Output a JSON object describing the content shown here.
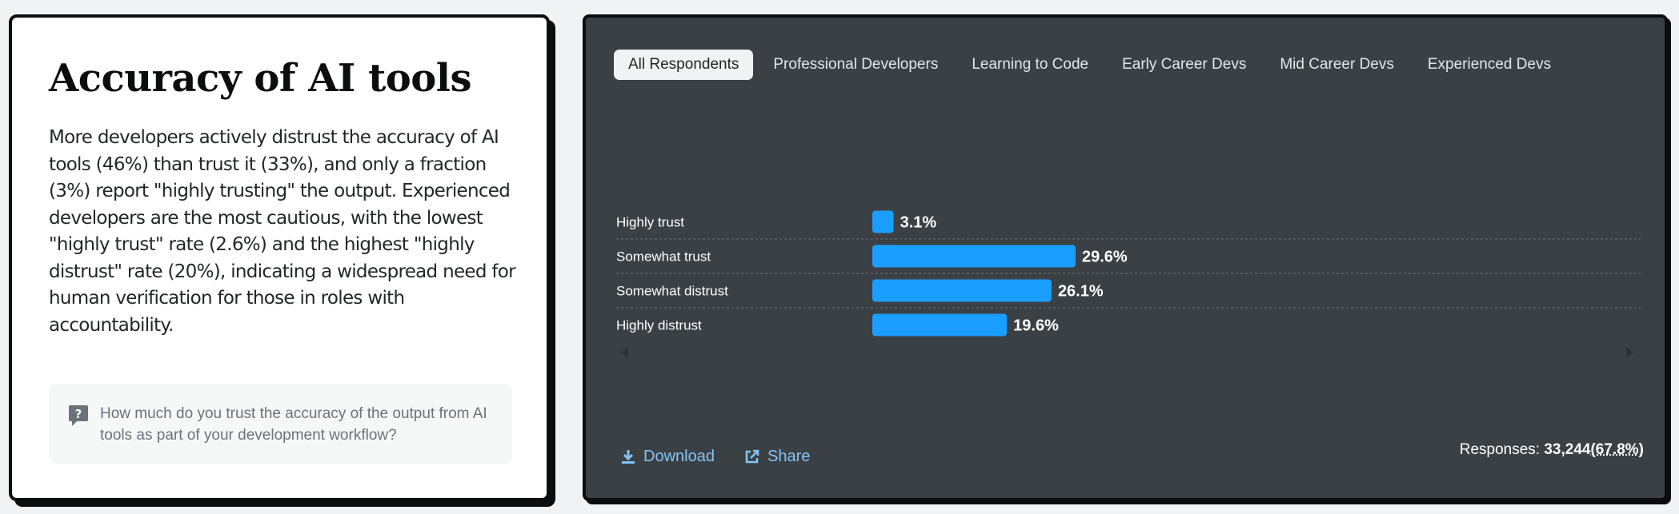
{
  "left": {
    "title": "Accuracy of AI tools",
    "description": "More developers actively distrust the accuracy of AI tools (46%) than trust it (33%), and only a fraction (3%) report \"highly trusting\" the output. Experienced developers are the most cautious, with the lowest \"highly trust\" rate (2.6%) and the highest \"highly distrust\" rate (20%), indicating a widespread need for human verification for those in roles with accountability.",
    "question": "How much do you trust the accuracy of the output from AI tools as part of your development workflow?",
    "question_icon": "question-icon"
  },
  "tabs": [
    {
      "label": "All Respondents",
      "active": true
    },
    {
      "label": "Professional Developers",
      "active": false
    },
    {
      "label": "Learning to Code",
      "active": false
    },
    {
      "label": "Early Career Devs",
      "active": false
    },
    {
      "label": "Mid Career Devs",
      "active": false
    },
    {
      "label": "Experienced Devs",
      "active": false
    }
  ],
  "chart_data": {
    "type": "bar",
    "orientation": "horizontal",
    "categories": [
      "Highly trust",
      "Somewhat trust",
      "Somewhat distrust",
      "Highly distrust"
    ],
    "values": [
      3.1,
      29.6,
      26.1,
      19.6
    ],
    "value_labels": [
      "3.1%",
      "29.6%",
      "26.1%",
      "19.6%"
    ],
    "unit": "%",
    "bar_color": "#1a9eff",
    "grid": "dashed row separators"
  },
  "footer": {
    "download_label": "Download",
    "download_icon": "download-icon",
    "share_label": "Share",
    "share_icon": "share-icon",
    "responses_label": "Responses: ",
    "responses_count": "33,244",
    "responses_pct": "(67.8%)"
  },
  "colors": {
    "card_dark": "#3b4045",
    "accent_link": "#84c4f3",
    "bar": "#1a9eff"
  }
}
